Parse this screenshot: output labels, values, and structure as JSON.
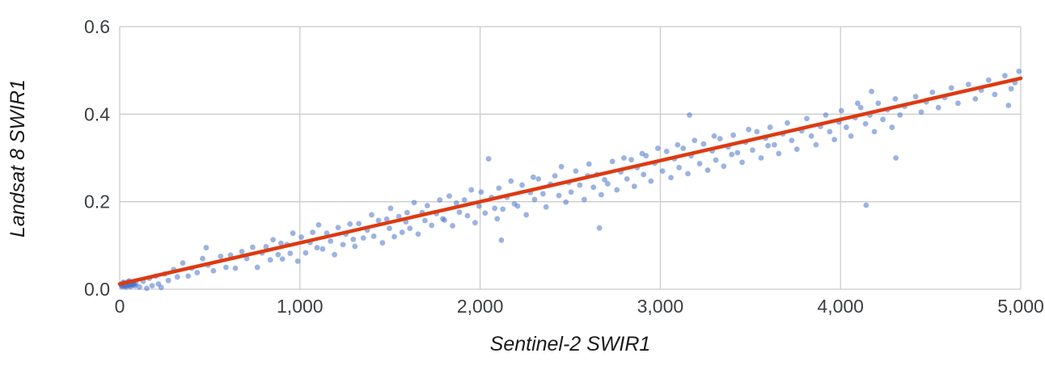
{
  "chart_data": {
    "type": "scatter",
    "title": "",
    "xlabel": "Sentinel-2 SWIR1",
    "ylabel": "Landsat 8 SWIR1",
    "xlim": [
      0,
      5000
    ],
    "ylim": [
      0,
      0.6
    ],
    "x_ticks": [
      0,
      1000,
      2000,
      3000,
      4000,
      5000
    ],
    "x_tick_labels": [
      "0",
      "1,000",
      "2,000",
      "3,000",
      "4,000",
      "5,000"
    ],
    "y_ticks": [
      0,
      0.2,
      0.4,
      0.6
    ],
    "y_tick_labels": [
      "0.0",
      "0.2",
      "0.4",
      "0.6"
    ],
    "grid": true,
    "legend": "none",
    "colors": {
      "point": "#4b74c9",
      "point_opacity": 0.55,
      "trendline": "#dd3a12",
      "gridline": "#cccccc",
      "tick_text": "#3c4043",
      "axis_title_text": "#1a1a1a"
    },
    "trendline": {
      "type": "linear",
      "x1": 0,
      "y1": 0.012,
      "x2": 5000,
      "y2": 0.482,
      "width": 4.5
    },
    "points": [
      [
        8,
        0.01
      ],
      [
        12,
        0.008
      ],
      [
        14,
        0.006
      ],
      [
        15,
        0.012
      ],
      [
        18,
        0.009
      ],
      [
        20,
        0.016
      ],
      [
        22,
        0.011
      ],
      [
        25,
        0.014
      ],
      [
        28,
        0.007
      ],
      [
        30,
        0.01
      ],
      [
        33,
        0.013
      ],
      [
        35,
        0.005
      ],
      [
        36,
        0.009
      ],
      [
        40,
        0.011
      ],
      [
        43,
        0.015
      ],
      [
        46,
        0.008
      ],
      [
        48,
        0.017
      ],
      [
        50,
        0.012
      ],
      [
        52,
        0.019
      ],
      [
        54,
        0.01
      ],
      [
        58,
        0.013
      ],
      [
        60,
        0.006
      ],
      [
        62,
        0.009
      ],
      [
        66,
        0.011
      ],
      [
        70,
        0.014
      ],
      [
        72,
        0.016
      ],
      [
        75,
        0.01
      ],
      [
        80,
        0.012
      ],
      [
        85,
        0.008
      ],
      [
        90,
        0.013
      ],
      [
        110,
        0.005
      ],
      [
        130,
        0.018
      ],
      [
        150,
        0.002
      ],
      [
        165,
        0.025
      ],
      [
        180,
        0.008
      ],
      [
        200,
        0.03
      ],
      [
        215,
        0.012
      ],
      [
        230,
        0.004
      ],
      [
        250,
        0.035
      ],
      [
        270,
        0.02
      ],
      [
        300,
        0.045
      ],
      [
        320,
        0.028
      ],
      [
        350,
        0.06
      ],
      [
        380,
        0.03
      ],
      [
        400,
        0.048
      ],
      [
        430,
        0.038
      ],
      [
        460,
        0.07
      ],
      [
        480,
        0.095
      ],
      [
        490,
        0.055
      ],
      [
        520,
        0.042
      ],
      [
        560,
        0.075
      ],
      [
        590,
        0.05
      ],
      [
        615,
        0.078
      ],
      [
        642,
        0.048
      ],
      [
        678,
        0.086
      ],
      [
        705,
        0.07
      ],
      [
        738,
        0.096
      ],
      [
        764,
        0.05
      ],
      [
        790,
        0.083
      ],
      [
        812,
        0.097
      ],
      [
        836,
        0.067
      ],
      [
        851,
        0.113
      ],
      [
        879,
        0.079
      ],
      [
        895,
        0.105
      ],
      [
        903,
        0.069
      ],
      [
        928,
        0.102
      ],
      [
        946,
        0.082
      ],
      [
        961,
        0.128
      ],
      [
        988,
        0.064
      ],
      [
        1008,
        0.119
      ],
      [
        1032,
        0.083
      ],
      [
        1057,
        0.107
      ],
      [
        1071,
        0.13
      ],
      [
        1095,
        0.095
      ],
      [
        1104,
        0.147
      ],
      [
        1126,
        0.092
      ],
      [
        1149,
        0.128
      ],
      [
        1170,
        0.11
      ],
      [
        1192,
        0.079
      ],
      [
        1212,
        0.141
      ],
      [
        1239,
        0.102
      ],
      [
        1255,
        0.126
      ],
      [
        1278,
        0.149
      ],
      [
        1296,
        0.114
      ],
      [
        1305,
        0.098
      ],
      [
        1327,
        0.15
      ],
      [
        1352,
        0.117
      ],
      [
        1374,
        0.135
      ],
      [
        1398,
        0.17
      ],
      [
        1410,
        0.121
      ],
      [
        1436,
        0.157
      ],
      [
        1458,
        0.106
      ],
      [
        1482,
        0.16
      ],
      [
        1497,
        0.139
      ],
      [
        1503,
        0.185
      ],
      [
        1524,
        0.12
      ],
      [
        1549,
        0.166
      ],
      [
        1567,
        0.13
      ],
      [
        1588,
        0.154
      ],
      [
        1595,
        0.175
      ],
      [
        1610,
        0.139
      ],
      [
        1634,
        0.198
      ],
      [
        1656,
        0.126
      ],
      [
        1679,
        0.175
      ],
      [
        1694,
        0.157
      ],
      [
        1707,
        0.191
      ],
      [
        1731,
        0.146
      ],
      [
        1758,
        0.173
      ],
      [
        1776,
        0.204
      ],
      [
        1793,
        0.161
      ],
      [
        1802,
        0.158
      ],
      [
        1829,
        0.213
      ],
      [
        1847,
        0.145
      ],
      [
        1868,
        0.197
      ],
      [
        1885,
        0.176
      ],
      [
        1913,
        0.204
      ],
      [
        1930,
        0.168
      ],
      [
        1951,
        0.227
      ],
      [
        1972,
        0.152
      ],
      [
        1994,
        0.19
      ],
      [
        2006,
        0.222
      ],
      [
        2028,
        0.174
      ],
      [
        2047,
        0.298
      ],
      [
        2063,
        0.21
      ],
      [
        2081,
        0.185
      ],
      [
        2095,
        0.161
      ],
      [
        2118,
        0.112
      ],
      [
        2104,
        0.231
      ],
      [
        2126,
        0.183
      ],
      [
        2149,
        0.21
      ],
      [
        2171,
        0.247
      ],
      [
        2190,
        0.195
      ],
      [
        2208,
        0.19
      ],
      [
        2233,
        0.238
      ],
      [
        2256,
        0.17
      ],
      [
        2279,
        0.221
      ],
      [
        2295,
        0.256
      ],
      [
        2302,
        0.205
      ],
      [
        2324,
        0.252
      ],
      [
        2349,
        0.218
      ],
      [
        2366,
        0.188
      ],
      [
        2390,
        0.24
      ],
      [
        2415,
        0.259
      ],
      [
        2437,
        0.214
      ],
      [
        2451,
        0.28
      ],
      [
        2476,
        0.199
      ],
      [
        2492,
        0.244
      ],
      [
        2505,
        0.222
      ],
      [
        2531,
        0.27
      ],
      [
        2553,
        0.238
      ],
      [
        2578,
        0.205
      ],
      [
        2597,
        0.259
      ],
      [
        2604,
        0.286
      ],
      [
        2629,
        0.233
      ],
      [
        2648,
        0.262
      ],
      [
        2662,
        0.14
      ],
      [
        2672,
        0.216
      ],
      [
        2691,
        0.25
      ],
      [
        2708,
        0.241
      ],
      [
        2734,
        0.292
      ],
      [
        2759,
        0.227
      ],
      [
        2781,
        0.268
      ],
      [
        2798,
        0.3
      ],
      [
        2815,
        0.252
      ],
      [
        2839,
        0.296
      ],
      [
        2856,
        0.235
      ],
      [
        2872,
        0.278
      ],
      [
        2899,
        0.31
      ],
      [
        2907,
        0.262
      ],
      [
        2921,
        0.305
      ],
      [
        2948,
        0.247
      ],
      [
        2969,
        0.288
      ],
      [
        2986,
        0.322
      ],
      [
        3012,
        0.27
      ],
      [
        3035,
        0.315
      ],
      [
        3059,
        0.255
      ],
      [
        3078,
        0.298
      ],
      [
        3096,
        0.33
      ],
      [
        3104,
        0.278
      ],
      [
        3127,
        0.322
      ],
      [
        3153,
        0.264
      ],
      [
        3162,
        0.398
      ],
      [
        3171,
        0.305
      ],
      [
        3190,
        0.34
      ],
      [
        3218,
        0.287
      ],
      [
        3240,
        0.332
      ],
      [
        3263,
        0.272
      ],
      [
        3288,
        0.316
      ],
      [
        3299,
        0.35
      ],
      [
        3308,
        0.295
      ],
      [
        3331,
        0.344
      ],
      [
        3352,
        0.281
      ],
      [
        3377,
        0.325
      ],
      [
        3396,
        0.308
      ],
      [
        3405,
        0.352
      ],
      [
        3428,
        0.312
      ],
      [
        3454,
        0.29
      ],
      [
        3473,
        0.336
      ],
      [
        3490,
        0.365
      ],
      [
        3512,
        0.318
      ],
      [
        3536,
        0.36
      ],
      [
        3559,
        0.3
      ],
      [
        3584,
        0.345
      ],
      [
        3598,
        0.328
      ],
      [
        3609,
        0.37
      ],
      [
        3633,
        0.33
      ],
      [
        3657,
        0.31
      ],
      [
        3680,
        0.355
      ],
      [
        3705,
        0.38
      ],
      [
        3729,
        0.34
      ],
      [
        3758,
        0.32
      ],
      [
        3785,
        0.362
      ],
      [
        3813,
        0.39
      ],
      [
        3838,
        0.35
      ],
      [
        3864,
        0.33
      ],
      [
        3889,
        0.372
      ],
      [
        3918,
        0.398
      ],
      [
        3940,
        0.36
      ],
      [
        3966,
        0.342
      ],
      [
        3991,
        0.382
      ],
      [
        4005,
        0.408
      ],
      [
        4032,
        0.37
      ],
      [
        4058,
        0.35
      ],
      [
        4081,
        0.392
      ],
      [
        4095,
        0.425
      ],
      [
        4112,
        0.415
      ],
      [
        4139,
        0.378
      ],
      [
        4142,
        0.192
      ],
      [
        4163,
        0.398
      ],
      [
        4172,
        0.452
      ],
      [
        4188,
        0.36
      ],
      [
        4209,
        0.425
      ],
      [
        4235,
        0.388
      ],
      [
        4261,
        0.41
      ],
      [
        4286,
        0.37
      ],
      [
        4304,
        0.435
      ],
      [
        4307,
        0.3
      ],
      [
        4330,
        0.398
      ],
      [
        4356,
        0.418
      ],
      [
        4417,
        0.44
      ],
      [
        4448,
        0.405
      ],
      [
        4476,
        0.428
      ],
      [
        4510,
        0.45
      ],
      [
        4543,
        0.415
      ],
      [
        4578,
        0.438
      ],
      [
        4615,
        0.46
      ],
      [
        4652,
        0.425
      ],
      [
        4710,
        0.468
      ],
      [
        4748,
        0.435
      ],
      [
        4781,
        0.455
      ],
      [
        4822,
        0.478
      ],
      [
        4856,
        0.445
      ],
      [
        4912,
        0.488
      ],
      [
        4932,
        0.42
      ],
      [
        4947,
        0.458
      ],
      [
        4968,
        0.472
      ],
      [
        4990,
        0.498
      ]
    ]
  }
}
